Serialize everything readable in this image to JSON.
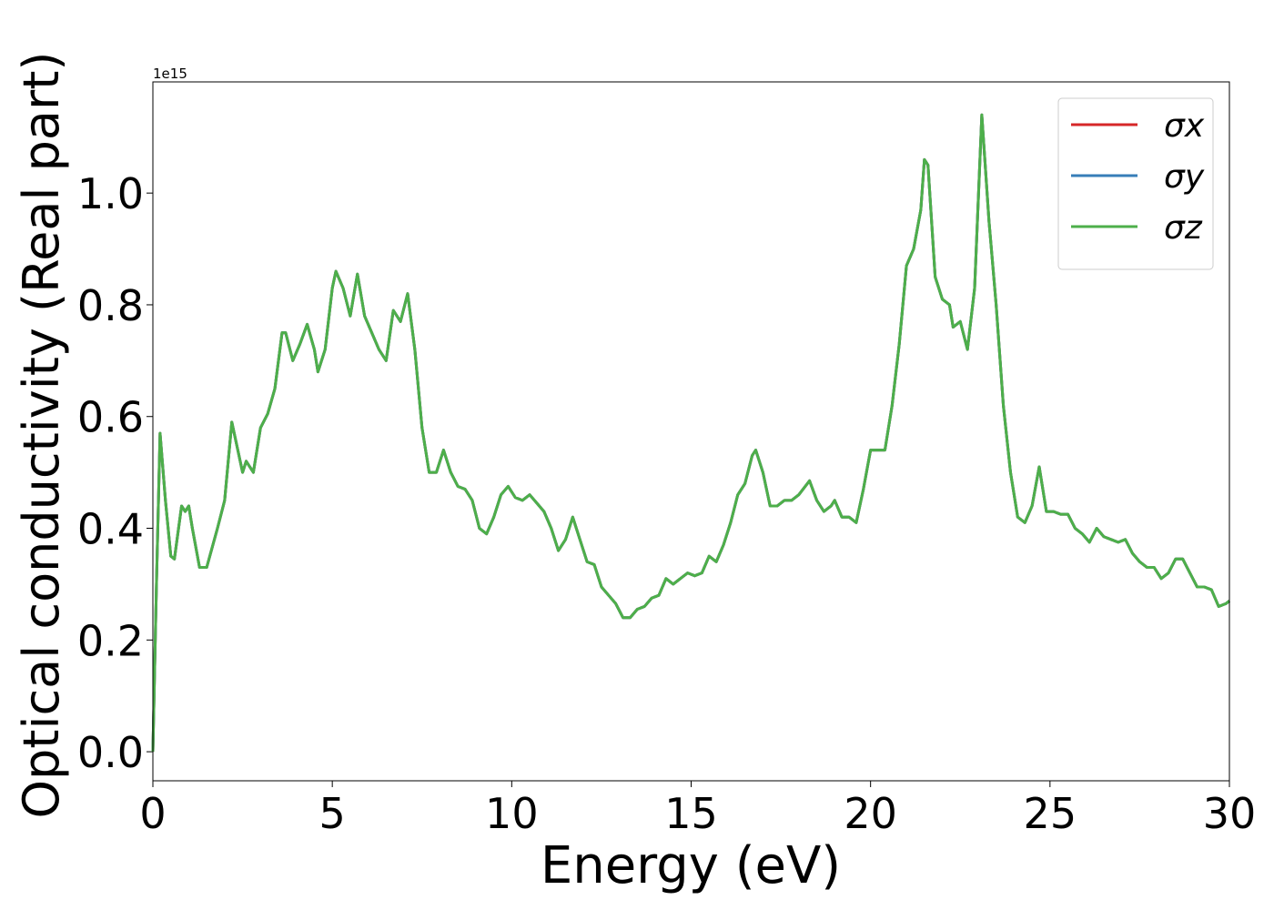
{
  "chart_data": {
    "type": "line",
    "xlabel": "Energy (eV)",
    "ylabel": "Optical conductivity (Real part)",
    "y_offset_text": "1e15",
    "xlim": [
      0,
      30
    ],
    "ylim": [
      -0.052,
      1.199
    ],
    "xticks": [
      0,
      5,
      10,
      15,
      20,
      25,
      30
    ],
    "yticks": [
      {
        "value": 0,
        "label": "0.0"
      },
      0.2,
      0.4,
      0.6,
      0.8,
      {
        "value": 1,
        "label": "1.0"
      }
    ],
    "legend": "upper right",
    "x": [
      0,
      0.1,
      0.2,
      0.35,
      0.5,
      0.6,
      0.8,
      0.9,
      1.0,
      1.1,
      1.3,
      1.5,
      1.8,
      2.0,
      2.2,
      2.4,
      2.5,
      2.6,
      2.8,
      3.0,
      3.2,
      3.4,
      3.6,
      3.7,
      3.9,
      4.1,
      4.3,
      4.5,
      4.6,
      4.8,
      5.0,
      5.1,
      5.3,
      5.5,
      5.7,
      5.9,
      6.1,
      6.3,
      6.5,
      6.7,
      6.9,
      7.1,
      7.3,
      7.5,
      7.7,
      7.9,
      8.1,
      8.3,
      8.5,
      8.7,
      8.9,
      9.1,
      9.3,
      9.5,
      9.7,
      9.9,
      10.1,
      10.3,
      10.5,
      10.7,
      10.9,
      11.1,
      11.3,
      11.5,
      11.7,
      11.9,
      12.1,
      12.3,
      12.5,
      12.7,
      12.9,
      13.1,
      13.3,
      13.5,
      13.7,
      13.9,
      14.1,
      14.3,
      14.5,
      14.7,
      14.9,
      15.1,
      15.3,
      15.5,
      15.7,
      15.9,
      16.1,
      16.3,
      16.5,
      16.7,
      16.8,
      17.0,
      17.2,
      17.4,
      17.6,
      17.8,
      18.0,
      18.3,
      18.5,
      18.7,
      18.9,
      19.0,
      19.2,
      19.4,
      19.6,
      19.8,
      20.0,
      20.2,
      20.4,
      20.6,
      20.8,
      21.0,
      21.2,
      21.4,
      21.5,
      21.6,
      21.8,
      22.0,
      22.2,
      22.3,
      22.5,
      22.7,
      22.9,
      23.1,
      23.3,
      23.5,
      23.7,
      23.9,
      24.1,
      24.3,
      24.5,
      24.7,
      24.9,
      25.1,
      25.3,
      25.5,
      25.7,
      25.9,
      26.1,
      26.3,
      26.5,
      26.7,
      26.9,
      27.1,
      27.3,
      27.5,
      27.7,
      27.9,
      28.1,
      28.3,
      28.5,
      28.7,
      28.9,
      29.1,
      29.3,
      29.5,
      29.7,
      29.9,
      30.0
    ],
    "series": [
      {
        "name": "σx",
        "color": "#d62728",
        "values": [
          0,
          0.3,
          0.57,
          0.45,
          0.35,
          0.345,
          0.44,
          0.43,
          0.44,
          0.4,
          0.33,
          0.33,
          0.4,
          0.45,
          0.59,
          0.53,
          0.5,
          0.52,
          0.5,
          0.58,
          0.605,
          0.65,
          0.75,
          0.75,
          0.7,
          0.73,
          0.765,
          0.72,
          0.68,
          0.72,
          0.83,
          0.86,
          0.83,
          0.78,
          0.855,
          0.78,
          0.75,
          0.72,
          0.7,
          0.79,
          0.77,
          0.82,
          0.72,
          0.58,
          0.5,
          0.5,
          0.54,
          0.5,
          0.475,
          0.47,
          0.45,
          0.4,
          0.39,
          0.42,
          0.46,
          0.475,
          0.455,
          0.45,
          0.46,
          0.445,
          0.43,
          0.4,
          0.36,
          0.38,
          0.42,
          0.38,
          0.34,
          0.335,
          0.295,
          0.28,
          0.265,
          0.24,
          0.24,
          0.255,
          0.26,
          0.275,
          0.28,
          0.31,
          0.3,
          0.31,
          0.32,
          0.315,
          0.32,
          0.35,
          0.34,
          0.37,
          0.41,
          0.46,
          0.48,
          0.53,
          0.54,
          0.5,
          0.44,
          0.44,
          0.45,
          0.45,
          0.46,
          0.485,
          0.45,
          0.43,
          0.44,
          0.45,
          0.42,
          0.42,
          0.41,
          0.47,
          0.54,
          0.54,
          0.54,
          0.62,
          0.73,
          0.87,
          0.9,
          0.97,
          1.06,
          1.05,
          0.85,
          0.81,
          0.8,
          0.76,
          0.77,
          0.72,
          0.83,
          1.14,
          0.95,
          0.8,
          0.62,
          0.5,
          0.42,
          0.41,
          0.44,
          0.51,
          0.43,
          0.43,
          0.425,
          0.425,
          0.4,
          0.39,
          0.375,
          0.4,
          0.385,
          0.38,
          0.375,
          0.38,
          0.355,
          0.34,
          0.33,
          0.33,
          0.31,
          0.32,
          0.345,
          0.345,
          0.32,
          0.295,
          0.295,
          0.29,
          0.26,
          0.265,
          0.27
        ]
      },
      {
        "name": "σy",
        "color": "#377eb8",
        "values": [
          0,
          0.3,
          0.57,
          0.45,
          0.35,
          0.345,
          0.44,
          0.43,
          0.44,
          0.4,
          0.33,
          0.33,
          0.4,
          0.45,
          0.59,
          0.53,
          0.5,
          0.52,
          0.5,
          0.58,
          0.605,
          0.65,
          0.75,
          0.75,
          0.7,
          0.73,
          0.765,
          0.72,
          0.68,
          0.72,
          0.83,
          0.86,
          0.83,
          0.78,
          0.855,
          0.78,
          0.75,
          0.72,
          0.7,
          0.79,
          0.77,
          0.82,
          0.72,
          0.58,
          0.5,
          0.5,
          0.54,
          0.5,
          0.475,
          0.47,
          0.45,
          0.4,
          0.39,
          0.42,
          0.46,
          0.475,
          0.455,
          0.45,
          0.46,
          0.445,
          0.43,
          0.4,
          0.36,
          0.38,
          0.42,
          0.38,
          0.34,
          0.335,
          0.295,
          0.28,
          0.265,
          0.24,
          0.24,
          0.255,
          0.26,
          0.275,
          0.28,
          0.31,
          0.3,
          0.31,
          0.32,
          0.315,
          0.32,
          0.35,
          0.34,
          0.37,
          0.41,
          0.46,
          0.48,
          0.53,
          0.54,
          0.5,
          0.44,
          0.44,
          0.45,
          0.45,
          0.46,
          0.485,
          0.45,
          0.43,
          0.44,
          0.45,
          0.42,
          0.42,
          0.41,
          0.47,
          0.54,
          0.54,
          0.54,
          0.62,
          0.73,
          0.87,
          0.9,
          0.97,
          1.06,
          1.05,
          0.85,
          0.81,
          0.8,
          0.76,
          0.77,
          0.72,
          0.83,
          1.14,
          0.95,
          0.8,
          0.62,
          0.5,
          0.42,
          0.41,
          0.44,
          0.51,
          0.43,
          0.43,
          0.425,
          0.425,
          0.4,
          0.39,
          0.375,
          0.4,
          0.385,
          0.38,
          0.375,
          0.38,
          0.355,
          0.34,
          0.33,
          0.33,
          0.31,
          0.32,
          0.345,
          0.345,
          0.32,
          0.295,
          0.295,
          0.29,
          0.26,
          0.265,
          0.27
        ]
      },
      {
        "name": "σz",
        "color": "#4daf4a",
        "values": [
          0,
          0.3,
          0.57,
          0.45,
          0.35,
          0.345,
          0.44,
          0.43,
          0.44,
          0.4,
          0.33,
          0.33,
          0.4,
          0.45,
          0.59,
          0.53,
          0.5,
          0.52,
          0.5,
          0.58,
          0.605,
          0.65,
          0.75,
          0.75,
          0.7,
          0.73,
          0.765,
          0.72,
          0.68,
          0.72,
          0.83,
          0.86,
          0.83,
          0.78,
          0.855,
          0.78,
          0.75,
          0.72,
          0.7,
          0.79,
          0.77,
          0.82,
          0.72,
          0.58,
          0.5,
          0.5,
          0.54,
          0.5,
          0.475,
          0.47,
          0.45,
          0.4,
          0.39,
          0.42,
          0.46,
          0.475,
          0.455,
          0.45,
          0.46,
          0.445,
          0.43,
          0.4,
          0.36,
          0.38,
          0.42,
          0.38,
          0.34,
          0.335,
          0.295,
          0.28,
          0.265,
          0.24,
          0.24,
          0.255,
          0.26,
          0.275,
          0.28,
          0.31,
          0.3,
          0.31,
          0.32,
          0.315,
          0.32,
          0.35,
          0.34,
          0.37,
          0.41,
          0.46,
          0.48,
          0.53,
          0.54,
          0.5,
          0.44,
          0.44,
          0.45,
          0.45,
          0.46,
          0.485,
          0.45,
          0.43,
          0.44,
          0.45,
          0.42,
          0.42,
          0.41,
          0.47,
          0.54,
          0.54,
          0.54,
          0.62,
          0.73,
          0.87,
          0.9,
          0.97,
          1.06,
          1.05,
          0.85,
          0.81,
          0.8,
          0.76,
          0.77,
          0.72,
          0.83,
          1.14,
          0.95,
          0.8,
          0.62,
          0.5,
          0.42,
          0.41,
          0.44,
          0.51,
          0.43,
          0.43,
          0.425,
          0.425,
          0.4,
          0.39,
          0.375,
          0.4,
          0.385,
          0.38,
          0.375,
          0.38,
          0.355,
          0.34,
          0.33,
          0.33,
          0.31,
          0.32,
          0.345,
          0.345,
          0.32,
          0.295,
          0.295,
          0.29,
          0.26,
          0.265,
          0.27
        ]
      }
    ]
  }
}
